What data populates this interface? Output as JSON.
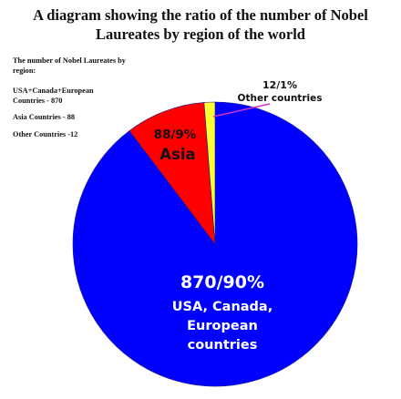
{
  "chart_data": {
    "type": "pie",
    "title": "A diagram showing the ratio of the number of Nobel Laureates by region of the world",
    "title_lines": [
      "A diagram showing the ratio of the number of Nobel",
      "Laureates by region of the world"
    ],
    "legend": {
      "heading": "The number of Nobel Laureates by region:",
      "entries": [
        "USA+Canada+European Countries - 870",
        "Asia Countries - 88",
        "Other Countries -12"
      ]
    },
    "slices": [
      {
        "name": "USA, Canada, European countries",
        "value": 870,
        "percent": 90,
        "color": "#0000ff",
        "value_label": "870/90%",
        "name_lines": [
          "USA, Canada,",
          "European",
          "countries"
        ]
      },
      {
        "name": "Asia",
        "value": 88,
        "percent": 9,
        "color": "#ff0000",
        "value_label": "88/9%",
        "name_lines": [
          "Asia"
        ]
      },
      {
        "name": "Other countries",
        "value": 12,
        "percent": 1,
        "color": "#ffff33",
        "value_label": "12/1%",
        "name_lines": [
          "Other countries"
        ]
      }
    ],
    "label_color": "#ffffff",
    "outside_label_color": "#111111",
    "leader_color": "#cc33cc"
  }
}
